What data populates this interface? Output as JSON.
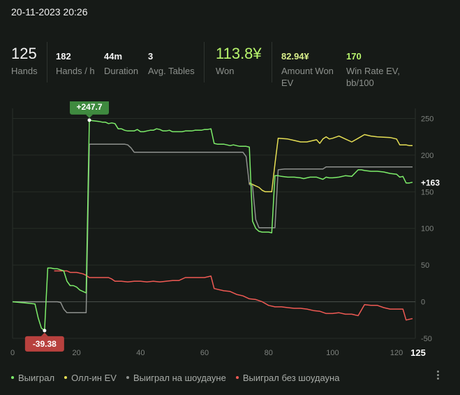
{
  "session": {
    "date": "20-11-2023 20:26"
  },
  "stats": {
    "hands": {
      "value": "125",
      "label": "Hands"
    },
    "hands_per_hour": {
      "value": "182",
      "label": "Hands / h"
    },
    "duration": {
      "value": "44m",
      "label": "Duration"
    },
    "avg_tables": {
      "value": "3",
      "label": "Avg. Tables"
    },
    "won": {
      "value": "113.8¥",
      "label": "Won"
    },
    "amount_won_ev": {
      "value": "82.94¥",
      "label": "Amount Won EV"
    },
    "win_rate_ev": {
      "value": "170",
      "label": "Win Rate EV, bb/100"
    }
  },
  "menu": {
    "icon": "more-vertical-icon"
  },
  "chart_data": {
    "type": "line",
    "xlim": [
      0,
      125
    ],
    "ylim": [
      -50,
      260
    ],
    "x_ticks": [
      0,
      20,
      40,
      60,
      80,
      100,
      120
    ],
    "x_ticks_labels": [
      "0",
      "20",
      "40",
      "60",
      "80",
      "100",
      "120"
    ],
    "x_end_label": "125",
    "y_ticks": [
      250,
      200,
      150,
      100,
      50,
      0,
      -50
    ],
    "y_ticks_labels": [
      "250",
      "200",
      "150",
      "100",
      "50",
      "0",
      "-50"
    ],
    "grid": true,
    "legend_position": "bottom-left",
    "end_value_label": "+163",
    "annotations": [
      {
        "text": "+247.7",
        "x": 24,
        "y": 247.7,
        "color": "#3f8a3f",
        "position": "above"
      },
      {
        "text": "-39.38",
        "x": 10,
        "y": -39.38,
        "color": "#b8413e",
        "position": "below"
      }
    ],
    "series": [
      {
        "name": "Выиграл",
        "color": "#7ded6a",
        "x": [
          0,
          5,
          7,
          8,
          9,
          10,
          11,
          12,
          13,
          14,
          16,
          17,
          18,
          19,
          20,
          21,
          23,
          24,
          25,
          27,
          28,
          29,
          30,
          31,
          32,
          33,
          34,
          35,
          36,
          37,
          38,
          39,
          40,
          41,
          42,
          43,
          44,
          45,
          46,
          47,
          48,
          49,
          50,
          51,
          52,
          53,
          54,
          55,
          56,
          57,
          58,
          59,
          60,
          61,
          62,
          63,
          64,
          65,
          66,
          67,
          68,
          69,
          70,
          71,
          72,
          73,
          74,
          75,
          76,
          77,
          78,
          79,
          80,
          81,
          82,
          83,
          84,
          86,
          88,
          90,
          91,
          92,
          93,
          95,
          97,
          98,
          99,
          100,
          102,
          104,
          106,
          108,
          109,
          110,
          112,
          114,
          116,
          118,
          120,
          121,
          122,
          123,
          124,
          125
        ],
        "y": [
          0,
          -2,
          -3,
          -22,
          -36,
          -39.38,
          46,
          46,
          45,
          45,
          42,
          28,
          22,
          22,
          20,
          16,
          12,
          247.7,
          247,
          246,
          245,
          245,
          243,
          244,
          243,
          236,
          236,
          234,
          233,
          233,
          233,
          235,
          232,
          232,
          233,
          234,
          234,
          236,
          235,
          233,
          233,
          234,
          232,
          232,
          232,
          232,
          233,
          233,
          233,
          234,
          234,
          234,
          235,
          235,
          236,
          216,
          215,
          215,
          215,
          214,
          213,
          214,
          213,
          212,
          212,
          212,
          211,
          110,
          100,
          96,
          95,
          95,
          95,
          94,
          172,
          172,
          171,
          170,
          170,
          169,
          168,
          169,
          170,
          170,
          167,
          170,
          169,
          169,
          170,
          172,
          171,
          180,
          180,
          179,
          178,
          178,
          177,
          175,
          174,
          170,
          171,
          162,
          162,
          163
        ]
      },
      {
        "name": "Олл-ин EV",
        "color": "#e6df55",
        "x": [
          74,
          75,
          76,
          77,
          78,
          79,
          80,
          81,
          82,
          83,
          86,
          88,
          90,
          92,
          95,
          96,
          97,
          98,
          99,
          100,
          102,
          104,
          106,
          108,
          110,
          112,
          114,
          118,
          120,
          121,
          122,
          123,
          124,
          125
        ],
        "y": [
          162,
          160,
          158,
          156,
          152,
          150,
          150,
          150,
          188,
          223,
          222,
          220,
          218,
          218,
          221,
          216,
          222,
          225,
          222,
          223,
          226,
          222,
          218,
          223,
          228,
          226,
          225,
          224,
          222,
          214,
          214,
          214,
          213,
          213
        ]
      },
      {
        "name": "Выиграл на шоудауне",
        "color": "#8e918e",
        "x": [
          0,
          14,
          15,
          16,
          17,
          18,
          19,
          20,
          21,
          22,
          23,
          24,
          28,
          29,
          30,
          31,
          32,
          33,
          34,
          35,
          36,
          37,
          38,
          40,
          45,
          50,
          55,
          60,
          65,
          70,
          71,
          72,
          73,
          74,
          75,
          76,
          77,
          78,
          80,
          81,
          82,
          83,
          85,
          90,
          92,
          95,
          97,
          98,
          100,
          105,
          110,
          115,
          120,
          125
        ],
        "y": [
          0,
          0,
          -1,
          -10,
          -15,
          -15,
          -15,
          -15,
          -15,
          -15,
          -15,
          215,
          215,
          215,
          215,
          215,
          215,
          215,
          215,
          215,
          214,
          210,
          204,
          204,
          204,
          204,
          204,
          204,
          204,
          204,
          204,
          204,
          198,
          160,
          158,
          112,
          101,
          101,
          101,
          101,
          101,
          180,
          181,
          181,
          181,
          181,
          181,
          184,
          184,
          184,
          184,
          184,
          184,
          184
        ]
      },
      {
        "name": "Выиграл без шоудауна",
        "color": "#f05a54",
        "x": [
          13,
          15,
          16,
          17,
          18,
          19,
          20,
          22,
          23,
          24,
          26,
          28,
          30,
          31,
          32,
          34,
          36,
          38,
          40,
          42,
          44,
          46,
          48,
          50,
          52,
          54,
          56,
          58,
          60,
          62,
          63,
          64,
          66,
          68,
          70,
          72,
          74,
          76,
          78,
          80,
          82,
          84,
          86,
          88,
          90,
          92,
          94,
          96,
          98,
          100,
          102,
          104,
          106,
          108,
          110,
          112,
          114,
          116,
          118,
          120,
          122,
          123,
          124,
          125
        ],
        "y": [
          42,
          42,
          42,
          42,
          40,
          40,
          40,
          38,
          36,
          33,
          33,
          33,
          33,
          31,
          28,
          28,
          27,
          28,
          28,
          27,
          28,
          27,
          28,
          29,
          29,
          33,
          33,
          33,
          33,
          35,
          18,
          17,
          15,
          14,
          10,
          8,
          4,
          3,
          0,
          -5,
          -7,
          -7,
          -8,
          -9,
          -9,
          -10,
          -12,
          -13,
          -16,
          -16,
          -15,
          -17,
          -17,
          -19,
          -4,
          -5,
          -5,
          -8,
          -10,
          -10,
          -10,
          -25,
          -24,
          -23
        ]
      }
    ]
  }
}
